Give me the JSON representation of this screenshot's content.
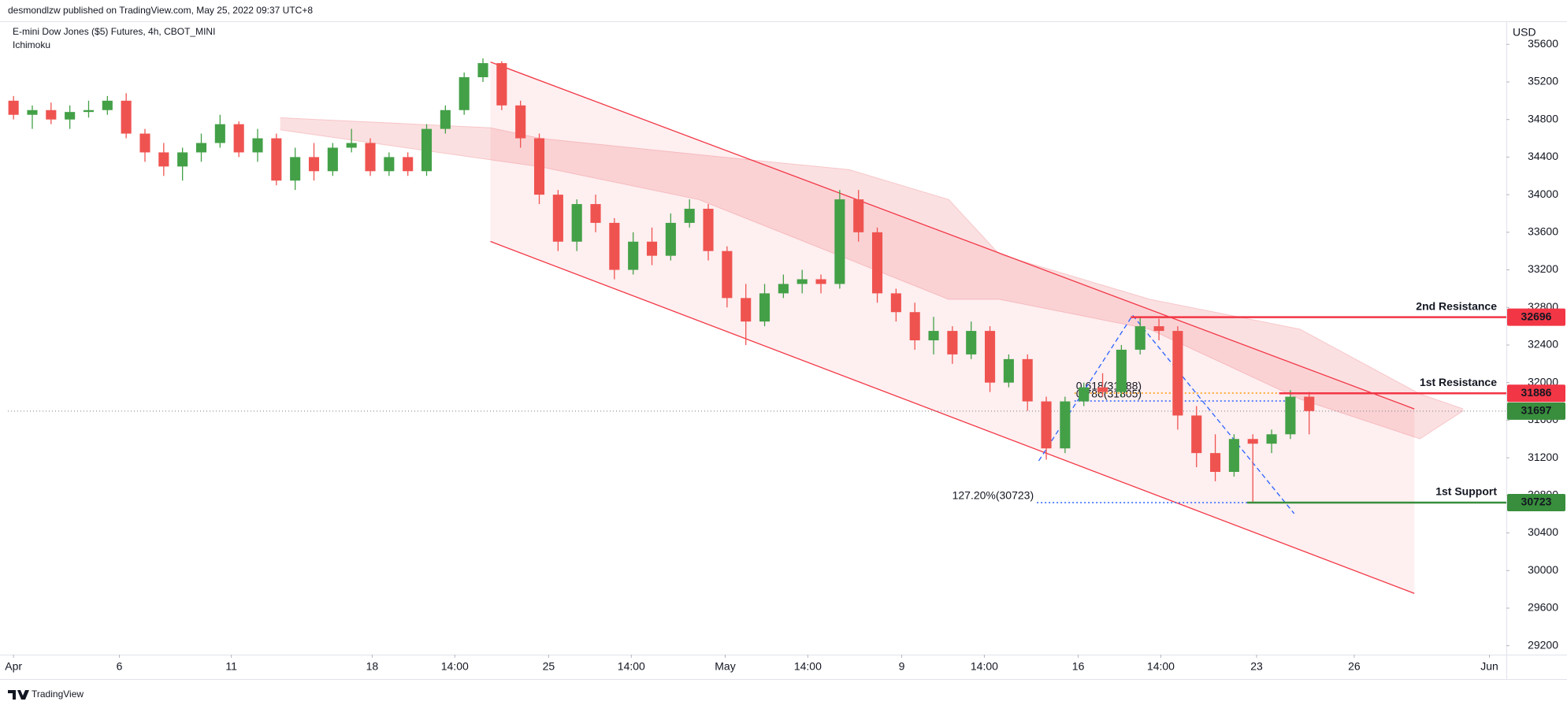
{
  "header": "desmondlzw published on TradingView.com, May 25, 2022 09:37 UTC+8",
  "footer": "TradingView",
  "chart_data": {
    "type": "candlestick",
    "title": "E-mini Dow Jones ($5) Futures, 4h, CBOT_MINI",
    "subtitle": "Ichimoku",
    "currency": "USD",
    "up_color": "#43a047",
    "down_color": "#ef5350",
    "candles": [
      [
        35000,
        35050,
        34800,
        34850
      ],
      [
        34850,
        34950,
        34700,
        34900
      ],
      [
        34900,
        34980,
        34750,
        34800
      ],
      [
        34800,
        34950,
        34700,
        34880
      ],
      [
        34880,
        35000,
        34820,
        34900
      ],
      [
        34900,
        35050,
        34850,
        35000
      ],
      [
        35000,
        35080,
        34600,
        34650
      ],
      [
        34650,
        34700,
        34350,
        34450
      ],
      [
        34450,
        34550,
        34200,
        34300
      ],
      [
        34300,
        34500,
        34150,
        34450
      ],
      [
        34450,
        34650,
        34350,
        34550
      ],
      [
        34550,
        34850,
        34500,
        34750
      ],
      [
        34750,
        34780,
        34400,
        34450
      ],
      [
        34450,
        34700,
        34350,
        34600
      ],
      [
        34600,
        34650,
        34100,
        34150
      ],
      [
        34150,
        34500,
        34050,
        34400
      ],
      [
        34400,
        34550,
        34150,
        34250
      ],
      [
        34250,
        34550,
        34200,
        34500
      ],
      [
        34500,
        34700,
        34450,
        34550
      ],
      [
        34550,
        34600,
        34200,
        34250
      ],
      [
        34250,
        34450,
        34200,
        34400
      ],
      [
        34400,
        34450,
        34200,
        34250
      ],
      [
        34250,
        34750,
        34200,
        34700
      ],
      [
        34700,
        34950,
        34650,
        34900
      ],
      [
        34900,
        35300,
        34850,
        35250
      ],
      [
        35250,
        35450,
        35200,
        35400
      ],
      [
        35400,
        35420,
        34900,
        34950
      ],
      [
        34950,
        35000,
        34500,
        34600
      ],
      [
        34600,
        34650,
        33900,
        34000
      ],
      [
        34000,
        34050,
        33400,
        33500
      ],
      [
        33500,
        33950,
        33400,
        33900
      ],
      [
        33900,
        34000,
        33600,
        33700
      ],
      [
        33700,
        33750,
        33100,
        33200
      ],
      [
        33200,
        33600,
        33150,
        33500
      ],
      [
        33500,
        33650,
        33250,
        33350
      ],
      [
        33350,
        33800,
        33300,
        33700
      ],
      [
        33700,
        33950,
        33650,
        33850
      ],
      [
        33850,
        33900,
        33300,
        33400
      ],
      [
        33400,
        33450,
        32800,
        32900
      ],
      [
        32900,
        33050,
        32400,
        32650
      ],
      [
        32650,
        33050,
        32600,
        32950
      ],
      [
        32950,
        33150,
        32900,
        33050
      ],
      [
        33050,
        33200,
        32950,
        33100
      ],
      [
        33100,
        33150,
        32950,
        33050
      ],
      [
        33050,
        34050,
        33000,
        33950
      ],
      [
        33950,
        34050,
        33500,
        33600
      ],
      [
        33600,
        33650,
        32850,
        32950
      ],
      [
        32950,
        33000,
        32650,
        32750
      ],
      [
        32750,
        32850,
        32350,
        32450
      ],
      [
        32450,
        32700,
        32300,
        32550
      ],
      [
        32550,
        32600,
        32200,
        32300
      ],
      [
        32300,
        32650,
        32250,
        32550
      ],
      [
        32550,
        32600,
        31900,
        32000
      ],
      [
        32000,
        32300,
        31950,
        32250
      ],
      [
        32250,
        32300,
        31700,
        31800
      ],
      [
        31800,
        31850,
        31180,
        31300
      ],
      [
        31300,
        31850,
        31250,
        31800
      ],
      [
        31800,
        32000,
        31750,
        31950
      ],
      [
        31950,
        32100,
        31850,
        31900
      ],
      [
        31900,
        32400,
        31850,
        32350
      ],
      [
        32350,
        32696,
        32300,
        32600
      ],
      [
        32600,
        32680,
        32450,
        32550
      ],
      [
        32550,
        32600,
        31500,
        31650
      ],
      [
        31650,
        31750,
        31100,
        31250
      ],
      [
        31250,
        31450,
        30950,
        31050
      ],
      [
        31050,
        31450,
        31000,
        31400
      ],
      [
        31400,
        31450,
        30723,
        31350
      ],
      [
        31350,
        31500,
        31250,
        31450
      ],
      [
        31450,
        31920,
        31400,
        31850
      ],
      [
        31850,
        31900,
        31450,
        31697
      ]
    ],
    "xlim": [
      -0.3,
      79.5
    ],
    "xticks": [
      {
        "value": 0,
        "label": "Apr"
      },
      {
        "value": 5.64,
        "label": "6"
      },
      {
        "value": 11.6,
        "label": "11"
      },
      {
        "value": 19.1,
        "label": "18"
      },
      {
        "value": 23.5,
        "label": "14:00"
      },
      {
        "value": 28.5,
        "label": "25"
      },
      {
        "value": 32.9,
        "label": "14:00"
      },
      {
        "value": 37.9,
        "label": "May"
      },
      {
        "value": 42.3,
        "label": "14:00"
      },
      {
        "value": 47.3,
        "label": "9"
      },
      {
        "value": 51.7,
        "label": "14:00"
      },
      {
        "value": 56.7,
        "label": "16"
      },
      {
        "value": 61.1,
        "label": "14:00"
      },
      {
        "value": 66.2,
        "label": "23"
      },
      {
        "value": 71.4,
        "label": "26"
      },
      {
        "value": 78.6,
        "label": "Jun"
      }
    ],
    "ylim": [
      29105,
      35837
    ],
    "yticks": [
      29200,
      29600,
      30000,
      30400,
      30800,
      31200,
      31600,
      32000,
      32400,
      32800,
      33200,
      33600,
      34000,
      34400,
      34800,
      35200,
      35600
    ],
    "last_price": 31697,
    "last_color": "#388e3c",
    "cloud": {
      "color": "#f7c6c9",
      "x": [
        14.2,
        25.4,
        28,
        36.5,
        44.5,
        49.8,
        52.5,
        60.5,
        68.5,
        74.9,
        77.2
      ],
      "upper": [
        34818,
        34712,
        34600,
        34425,
        34266,
        33948,
        33365,
        32887,
        32569,
        31879,
        31720
      ],
      "lower": [
        34690,
        34372,
        34300,
        33948,
        33311,
        32887,
        32887,
        32569,
        31826,
        31402,
        31700
      ]
    },
    "channel": {
      "color": "#f23645",
      "x": [
        25.4,
        74.6
      ],
      "upper": [
        35412,
        31720
      ],
      "lower": [
        33502,
        29757
      ]
    },
    "pattern": {
      "color": "#2962ff",
      "x": [
        54.6,
        59.6,
        68.2
      ],
      "values": [
        31168,
        32717,
        30606
      ]
    },
    "fib": [
      {
        "label": "0.786(31805)",
        "value": 31805,
        "x": [
          56.5,
          67.9
        ],
        "color": "#2962ff"
      },
      {
        "label": "0.618(31888)",
        "value": 31888,
        "x": [
          56.5,
          67.4
        ],
        "color": "#ff9800"
      },
      {
        "label": "127.20%(30723)",
        "value": 30723,
        "x": [
          54.5,
          65.7
        ],
        "color": "#2962ff"
      }
    ],
    "levels": [
      {
        "name": "2nd Resistance",
        "value": 32696,
        "from": 59.5,
        "color": "#f23645"
      },
      {
        "name": "1st Resistance",
        "value": 31886,
        "from": 67.4,
        "color": "#f23645"
      },
      {
        "name": "1st Support",
        "value": 30723,
        "from": 65.7,
        "color": "#388e3c"
      }
    ]
  }
}
